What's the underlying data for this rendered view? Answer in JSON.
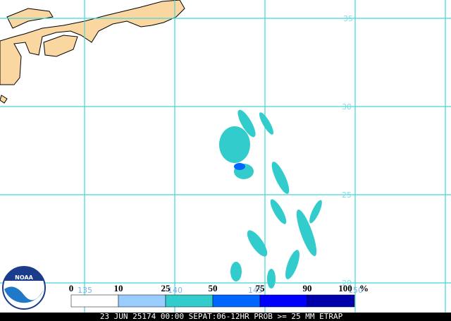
{
  "grid_labels": {
    "lat": [
      "35",
      "30",
      "25",
      "20"
    ],
    "lon": [
      "135",
      "140",
      "145",
      "150"
    ]
  },
  "legend": {
    "labels": [
      "0",
      "10",
      "25",
      "50",
      "75",
      "90",
      "100"
    ],
    "unit": "%"
  },
  "logo": "NOAA",
  "footer": "23 JUN 25174 00:00 SEPAT:06-12HR PROB >= 25 MM ETRAP"
}
